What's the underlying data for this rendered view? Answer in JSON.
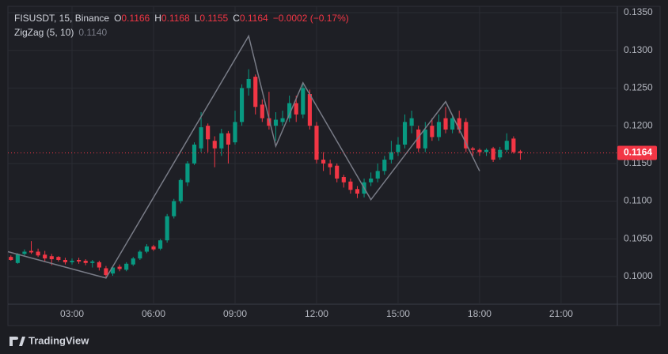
{
  "chart_data": {
    "type": "candlestick",
    "header": {
      "symbol": "FISUSDT, 15, Binance",
      "ohlc": [
        {
          "label": "O",
          "value": 0.1166
        },
        {
          "label": "H",
          "value": 0.1168
        },
        {
          "label": "L",
          "value": 0.1155
        },
        {
          "label": "C",
          "value": 0.1164
        }
      ],
      "change": "−0.0002 (−0.17%)"
    },
    "up_color": "#089981",
    "down_color": "#f23645",
    "x": [
      0.75,
      1,
      1.25,
      1.5,
      1.75,
      2,
      2.25,
      2.5,
      2.75,
      3,
      3.25,
      3.5,
      3.75,
      4,
      4.25,
      4.5,
      4.75,
      5,
      5.25,
      5.5,
      5.75,
      6,
      6.25,
      6.5,
      6.75,
      7,
      7.25,
      7.5,
      7.75,
      8,
      8.25,
      8.5,
      8.75,
      9,
      9.25,
      9.5,
      9.75,
      10,
      10.25,
      10.5,
      10.75,
      11,
      11.25,
      11.5,
      11.75,
      12,
      12.25,
      12.5,
      12.75,
      13,
      13.25,
      13.5,
      13.75,
      14,
      14.25,
      14.5,
      14.75,
      15,
      15.25,
      15.5,
      15.75,
      16,
      16.25,
      16.5,
      16.75,
      17,
      17.25,
      17.5,
      17.75,
      18,
      18.25,
      18.5,
      18.75,
      19,
      19.25,
      19.5
    ],
    "open": [
      0.1026,
      0.1018,
      0.103,
      0.1034,
      0.1033,
      0.1029,
      0.1027,
      0.1026,
      0.1022,
      0.1019,
      0.1022,
      0.1021,
      0.1018,
      0.1019,
      0.1011,
      0.1004,
      0.1013,
      0.1009,
      0.1016,
      0.1024,
      0.1033,
      0.104,
      0.1037,
      0.1048,
      0.108,
      0.11,
      0.1125,
      0.115,
      0.117,
      0.12,
      0.118,
      0.117,
      0.119,
      0.1178,
      0.1205,
      0.125,
      0.1265,
      0.1228,
      0.121,
      0.12,
      0.1205,
      0.121,
      0.123,
      0.1215,
      0.1242,
      0.12,
      0.1155,
      0.115,
      0.1147,
      0.1132,
      0.1126,
      0.1116,
      0.111,
      0.1125,
      0.113,
      0.114,
      0.1155,
      0.1165,
      0.1175,
      0.12,
      0.1195,
      0.117,
      0.12,
      0.1185,
      0.121,
      0.1195,
      0.121,
      0.1205,
      0.117,
      0.1168,
      0.1165,
      0.117,
      0.1158,
      0.1168,
      0.1183,
      0.1166
    ],
    "high": [
      0.1028,
      0.1031,
      0.1036,
      0.1047,
      0.1037,
      0.1034,
      0.103,
      0.1027,
      0.1025,
      0.1024,
      0.1025,
      0.1023,
      0.1022,
      0.1021,
      0.1014,
      0.1014,
      0.1016,
      0.1019,
      0.1026,
      0.1035,
      0.1043,
      0.1042,
      0.105,
      0.1083,
      0.1103,
      0.113,
      0.1153,
      0.1178,
      0.1218,
      0.1203,
      0.1186,
      0.1196,
      0.1193,
      0.122,
      0.1255,
      0.1275,
      0.1268,
      0.1235,
      0.1245,
      0.1218,
      0.122,
      0.124,
      0.124,
      0.1255,
      0.1248,
      0.1205,
      0.1165,
      0.1155,
      0.115,
      0.1135,
      0.113,
      0.112,
      0.113,
      0.1138,
      0.115,
      0.116,
      0.118,
      0.1185,
      0.1215,
      0.122,
      0.12,
      0.1205,
      0.121,
      0.1215,
      0.1225,
      0.1215,
      0.122,
      0.121,
      0.1172,
      0.117,
      0.117,
      0.1172,
      0.1172,
      0.119,
      0.1186,
      0.1168
    ],
    "low": [
      0.1021,
      0.1017,
      0.1028,
      0.103,
      0.1026,
      0.102,
      0.1015,
      0.102,
      0.1016,
      0.1016,
      0.1017,
      0.1015,
      0.1012,
      0.1008,
      0.0998,
      0.1001,
      0.1007,
      0.1007,
      0.1014,
      0.1022,
      0.1031,
      0.1034,
      0.1035,
      0.1045,
      0.1077,
      0.1097,
      0.112,
      0.1148,
      0.1165,
      0.1165,
      0.1145,
      0.116,
      0.115,
      0.1175,
      0.12,
      0.124,
      0.1215,
      0.1205,
      0.1195,
      0.118,
      0.12,
      0.1205,
      0.1205,
      0.121,
      0.1195,
      0.115,
      0.114,
      0.1135,
      0.1125,
      0.1118,
      0.111,
      0.1104,
      0.1105,
      0.112,
      0.1125,
      0.1135,
      0.115,
      0.116,
      0.117,
      0.119,
      0.1165,
      0.1165,
      0.118,
      0.118,
      0.119,
      0.119,
      0.119,
      0.1165,
      0.116,
      0.116,
      0.116,
      0.1152,
      0.1155,
      0.1165,
      0.1163,
      0.1155
    ],
    "close": [
      0.1022,
      0.103,
      0.1033,
      0.1032,
      0.1028,
      0.1024,
      0.1023,
      0.1022,
      0.1019,
      0.1021,
      0.102,
      0.1018,
      0.102,
      0.1012,
      0.1002,
      0.1012,
      0.101,
      0.1017,
      0.1024,
      0.1033,
      0.104,
      0.1036,
      0.1048,
      0.108,
      0.11,
      0.1128,
      0.115,
      0.1175,
      0.1198,
      0.1182,
      0.117,
      0.119,
      0.1175,
      0.1205,
      0.125,
      0.1262,
      0.1225,
      0.121,
      0.12,
      0.1208,
      0.121,
      0.123,
      0.1215,
      0.125,
      0.12,
      0.1155,
      0.115,
      0.1145,
      0.113,
      0.1125,
      0.1115,
      0.111,
      0.1125,
      0.113,
      0.114,
      0.1155,
      0.1165,
      0.1175,
      0.1205,
      0.121,
      0.117,
      0.1195,
      0.1185,
      0.1205,
      0.1195,
      0.121,
      0.1195,
      0.117,
      0.1168,
      0.1165,
      0.1168,
      0.1155,
      0.1168,
      0.118,
      0.1165,
      0.1164
    ],
    "zigzag": {
      "name": "ZigZag (5, 10)",
      "last_label": "0.1140",
      "color": "#787b86",
      "x": [
        0.64,
        4.25,
        9.5,
        10.5,
        11.5,
        14,
        16.75,
        18
      ],
      "values": [
        0.1033,
        0.0998,
        0.1319,
        0.1173,
        0.1257,
        0.1102,
        0.1232,
        0.114
      ]
    },
    "last_price": 0.1164,
    "xlim": [
      0.64,
      23.07
    ],
    "ylim": [
      0.09633,
      0.13584
    ],
    "xticks": [
      {
        "value": 3,
        "label": "03:00"
      },
      {
        "value": 6,
        "label": "06:00"
      },
      {
        "value": 9,
        "label": "09:00"
      },
      {
        "value": 12,
        "label": "12:00"
      },
      {
        "value": 15,
        "label": "15:00"
      },
      {
        "value": 18,
        "label": "18:00"
      },
      {
        "value": 21,
        "label": "21:00"
      }
    ],
    "yticks": [
      {
        "value": 0.1,
        "label": "0.1000"
      },
      {
        "value": 0.105,
        "label": "0.1050"
      },
      {
        "value": 0.11,
        "label": "0.1100"
      },
      {
        "value": 0.115,
        "label": "0.1150"
      },
      {
        "value": 0.12,
        "label": "0.1200"
      },
      {
        "value": 0.125,
        "label": "0.1250"
      },
      {
        "value": 0.13,
        "label": "0.1300"
      },
      {
        "value": 0.135,
        "label": "0.1350"
      }
    ],
    "grid": true,
    "branding": "TradingView"
  }
}
